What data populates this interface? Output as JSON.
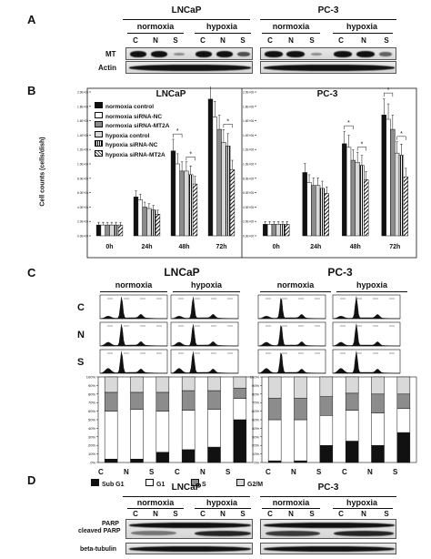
{
  "panels": {
    "A": {
      "letter": "A",
      "cell_lines": [
        "LNCaP",
        "PC-3"
      ],
      "conditions": [
        "normoxia",
        "hypoxia"
      ],
      "lanes": [
        "C",
        "N",
        "S"
      ],
      "rows": [
        "MT",
        "Actin"
      ]
    },
    "B": {
      "letter": "B",
      "ylabel": "Cell counts (cells/dish)",
      "yticks": [
        "0.0E+00",
        "2.0E+05",
        "4.0E+05",
        "6.0E+05",
        "8.0E+05",
        "1.0E+06",
        "1.2E+06",
        "1.4E+06",
        "1.6E+06",
        "1.8E+06",
        "2.0E+06"
      ],
      "legend": [
        "normoxia control",
        "normoxia siRNA-NC",
        "normoxia siRNA-MT2A",
        "hypoxia control",
        "hypoxia siRNA-NC",
        "hypoxia siRNA-MT2A"
      ],
      "timepoints": [
        "0h",
        "24h",
        "48h",
        "72h"
      ],
      "sig_mark": "*"
    },
    "C": {
      "letter": "C",
      "cell_lines": [
        "LNCaP",
        "PC-3"
      ],
      "conditions": [
        "normoxia",
        "hypoxia"
      ],
      "rows": [
        "C",
        "N",
        "S"
      ],
      "xcats": [
        "C",
        "N",
        "S",
        "C",
        "N",
        "S"
      ],
      "yticks": [
        "0%",
        "10%",
        "20%",
        "30%",
        "40%",
        "50%",
        "60%",
        "70%",
        "80%",
        "90%",
        "100%"
      ],
      "legend": [
        "Sub G1",
        "G1",
        "S",
        "G2/M"
      ]
    },
    "D": {
      "letter": "D",
      "cell_lines": [
        "LNCaP",
        "PC-3"
      ],
      "conditions": [
        "normoxia",
        "hypoxia"
      ],
      "lanes": [
        "C",
        "N",
        "S"
      ],
      "rows": [
        "PARP",
        "cleaved PARP",
        "beta-tubulin"
      ]
    }
  },
  "colors": {
    "ctrl_norm": "#111111",
    "nc_norm": "#ffffff",
    "mt_norm": "#8c8c8c",
    "ctrl_hyp": "#d9d9d9",
    "subg1": "#111111",
    "g1": "#ffffff",
    "s": "#8c8c8c",
    "g2m": "#d9d9d9"
  },
  "chart_data": [
    {
      "type": "bar",
      "title": "LNCaP",
      "categories": [
        "0h",
        "24h",
        "48h",
        "72h"
      ],
      "ylabel": "Cell counts (cells/dish)",
      "ylim": [
        0,
        2000000
      ],
      "series": [
        {
          "name": "normoxia control",
          "values": [
            150000,
            540000,
            1180000,
            1900000
          ]
        },
        {
          "name": "normoxia siRNA-NC",
          "values": [
            150000,
            500000,
            1000000,
            1650000
          ]
        },
        {
          "name": "normoxia siRNA-MT2A",
          "values": [
            150000,
            400000,
            900000,
            1480000
          ]
        },
        {
          "name": "hypoxia control",
          "values": [
            150000,
            380000,
            900000,
            1300000
          ]
        },
        {
          "name": "hypoxia siRNA-NC",
          "values": [
            150000,
            360000,
            850000,
            1250000
          ]
        },
        {
          "name": "hypoxia siRNA-MT2A",
          "values": [
            150000,
            300000,
            720000,
            920000
          ]
        }
      ]
    },
    {
      "type": "bar",
      "title": "PC-3",
      "categories": [
        "0h",
        "24h",
        "48h",
        "72h"
      ],
      "ylim": [
        0,
        2000000
      ],
      "series": [
        {
          "name": "normoxia control",
          "values": [
            160000,
            880000,
            1280000,
            1680000
          ]
        },
        {
          "name": "normoxia siRNA-NC",
          "values": [
            160000,
            740000,
            1230000,
            1620000
          ]
        },
        {
          "name": "normoxia siRNA-MT2A",
          "values": [
            160000,
            700000,
            1050000,
            1480000
          ]
        },
        {
          "name": "hypoxia control",
          "values": [
            160000,
            700000,
            1020000,
            1150000
          ]
        },
        {
          "name": "hypoxia siRNA-NC",
          "values": [
            160000,
            660000,
            980000,
            1120000
          ]
        },
        {
          "name": "hypoxia siRNA-MT2A",
          "values": [
            160000,
            590000,
            780000,
            820000
          ]
        }
      ]
    },
    {
      "type": "bar",
      "title": "LNCaP",
      "categories": [
        "C",
        "N",
        "S",
        "C",
        "N",
        "S"
      ],
      "ylim": [
        0,
        100
      ],
      "series": [
        {
          "name": "Sub G1",
          "values": [
            4,
            4,
            12,
            15,
            18,
            50
          ]
        },
        {
          "name": "G1",
          "values": [
            56,
            58,
            48,
            46,
            44,
            25
          ]
        },
        {
          "name": "S",
          "values": [
            22,
            20,
            22,
            23,
            22,
            12
          ]
        },
        {
          "name": "G2/M",
          "values": [
            18,
            18,
            18,
            16,
            16,
            13
          ]
        }
      ]
    },
    {
      "type": "bar",
      "title": "PC-3",
      "categories": [
        "C",
        "N",
        "S",
        "C",
        "N",
        "S"
      ],
      "ylim": [
        0,
        100
      ],
      "series": [
        {
          "name": "Sub G1",
          "values": [
            2,
            2,
            20,
            25,
            20,
            35
          ]
        },
        {
          "name": "G1",
          "values": [
            48,
            48,
            35,
            36,
            38,
            28
          ]
        },
        {
          "name": "S",
          "values": [
            25,
            25,
            22,
            20,
            22,
            17
          ]
        },
        {
          "name": "G2/M",
          "values": [
            25,
            25,
            23,
            19,
            20,
            20
          ]
        }
      ]
    }
  ]
}
